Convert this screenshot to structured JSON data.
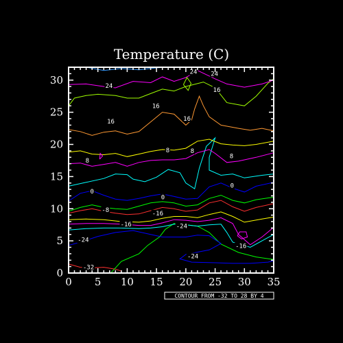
{
  "chart_data": {
    "type": "contour",
    "title": "Temperature (C)",
    "x_ticks": [
      "0",
      "5",
      "10",
      "15",
      "20",
      "25",
      "30",
      "35"
    ],
    "y_ticks": [
      "0",
      "5",
      "10",
      "15",
      "20",
      "25",
      "30"
    ],
    "xlim": [
      0,
      35
    ],
    "ylim": [
      0,
      32
    ],
    "contour_info": "CONTOUR FROM -32 TO 28 BY 4",
    "contour_levels": [
      -32,
      -28,
      -24,
      -20,
      -16,
      -12,
      -8,
      -4,
      0,
      4,
      8,
      12,
      16,
      20,
      24,
      28
    ],
    "level_colors": {
      "-32": "#ff3030",
      "-28": "#00ff00",
      "-24": "#0000ff",
      "-20": "#00ffff",
      "-16": "#ff00ff",
      "-12": "#ffff00",
      "-8": "#ff3030",
      "-4": "#00ff00",
      "0": "#0000ff",
      "4": "#00ffff",
      "8": "#ff00ff",
      "12": "#ffff00",
      "16": "#ff9933",
      "20": "#a0ff00",
      "24": "#ff00ff",
      "28": "#3399ff"
    },
    "contours": [
      {
        "level": -32,
        "points": [
          [
            0,
            1.4
          ],
          [
            2,
            0.9
          ],
          [
            4,
            0.8
          ],
          [
            6,
            0.9
          ],
          [
            8,
            0.6
          ],
          [
            9,
            0.3
          ]
        ]
      },
      {
        "level": -28,
        "points": [
          [
            7.2,
            0
          ],
          [
            9,
            1.8
          ],
          [
            12,
            3.0
          ],
          [
            13.5,
            4.3
          ],
          [
            15.5,
            5.6
          ],
          [
            16.5,
            6.8
          ],
          [
            18,
            7.7
          ],
          [
            20,
            7.5
          ],
          [
            22,
            7.3
          ],
          [
            24,
            6.3
          ],
          [
            26,
            4.5
          ],
          [
            29,
            3.2
          ],
          [
            32,
            2.5
          ],
          [
            35,
            2.1
          ]
        ]
      },
      {
        "level": -24,
        "points": [
          [
            0,
            4.3
          ],
          [
            2,
            4.8
          ],
          [
            5,
            5.7
          ],
          [
            8,
            6.3
          ],
          [
            11,
            6.6
          ],
          [
            14,
            6.0
          ],
          [
            16,
            5.6
          ],
          [
            18,
            5.6
          ],
          [
            20,
            5.6
          ],
          [
            22,
            5.9
          ],
          [
            24,
            5.8
          ],
          [
            26,
            4.6
          ],
          [
            24,
            3.6
          ],
          [
            20,
            2.9
          ],
          [
            19,
            2.2
          ],
          [
            21,
            1.7
          ],
          [
            25,
            1.6
          ],
          [
            28,
            1.5
          ],
          [
            31,
            1.5
          ],
          [
            34,
            1.7
          ],
          [
            35,
            1.9
          ]
        ]
      },
      {
        "level": -20,
        "points": [
          [
            0,
            6.7
          ],
          [
            3,
            6.9
          ],
          [
            6,
            7.0
          ],
          [
            9,
            7.0
          ],
          [
            12,
            6.9
          ],
          [
            14,
            7.0
          ],
          [
            16,
            7.2
          ],
          [
            18,
            7.6
          ],
          [
            20,
            7.5
          ],
          [
            22,
            7.3
          ],
          [
            24,
            7.5
          ],
          [
            26,
            7.6
          ],
          [
            27,
            6.3
          ],
          [
            28,
            4.8
          ],
          [
            31,
            4.0
          ],
          [
            33,
            5.0
          ],
          [
            35,
            6.0
          ]
        ]
      },
      {
        "level": -16,
        "points": [
          [
            0,
            7.6
          ],
          [
            3,
            7.7
          ],
          [
            6,
            7.7
          ],
          [
            9,
            7.6
          ],
          [
            12,
            7.4
          ],
          [
            14,
            7.4
          ],
          [
            16,
            7.8
          ],
          [
            18,
            8.3
          ],
          [
            20,
            8.2
          ],
          [
            22,
            8.0
          ],
          [
            24,
            8.2
          ],
          [
            26,
            8.6
          ],
          [
            28,
            7.7
          ],
          [
            29,
            6.0
          ],
          [
            31,
            4.4
          ],
          [
            33,
            5.6
          ],
          [
            35,
            7.1
          ]
        ]
      },
      {
        "level": -12,
        "points": [
          [
            0,
            8.3
          ],
          [
            3,
            8.4
          ],
          [
            6,
            8.3
          ],
          [
            9,
            8.0
          ],
          [
            12,
            7.9
          ],
          [
            14,
            8.1
          ],
          [
            16,
            8.5
          ],
          [
            18,
            8.8
          ],
          [
            20,
            8.8
          ],
          [
            22,
            8.6
          ],
          [
            24,
            9.1
          ],
          [
            26,
            9.5
          ],
          [
            28,
            8.8
          ],
          [
            30,
            7.9
          ],
          [
            33,
            8.4
          ],
          [
            35,
            8.7
          ]
        ]
      },
      {
        "level": -8,
        "points": [
          [
            0,
            9.3
          ],
          [
            2,
            9.7
          ],
          [
            4,
            10.0
          ],
          [
            6,
            9.6
          ],
          [
            8,
            9.3
          ],
          [
            10,
            9.1
          ],
          [
            12,
            9.2
          ],
          [
            14,
            9.7
          ],
          [
            16,
            10.2
          ],
          [
            18,
            10.0
          ],
          [
            20,
            9.6
          ],
          [
            22,
            9.8
          ],
          [
            24,
            10.9
          ],
          [
            26,
            11.3
          ],
          [
            28,
            10.3
          ],
          [
            30,
            9.6
          ],
          [
            32,
            10.2
          ],
          [
            35,
            10.8
          ]
        ]
      },
      {
        "level": -4,
        "points": [
          [
            0,
            9.6
          ],
          [
            2,
            10.2
          ],
          [
            4,
            10.6
          ],
          [
            6,
            10.2
          ],
          [
            8,
            10.0
          ],
          [
            10,
            9.9
          ],
          [
            12,
            10.4
          ],
          [
            14,
            10.9
          ],
          [
            16,
            11.1
          ],
          [
            18,
            10.9
          ],
          [
            20,
            10.4
          ],
          [
            22,
            10.6
          ],
          [
            24,
            11.6
          ],
          [
            26,
            12.1
          ],
          [
            28,
            11.3
          ],
          [
            30,
            10.9
          ],
          [
            32,
            11.4
          ],
          [
            35,
            11.8
          ]
        ]
      },
      {
        "level": 0,
        "points": [
          [
            0,
            11.2
          ],
          [
            2,
            12.4
          ],
          [
            4,
            12.8
          ],
          [
            6,
            12.1
          ],
          [
            8,
            11.5
          ],
          [
            10,
            11.3
          ],
          [
            12,
            11.6
          ],
          [
            14,
            12.0
          ],
          [
            16,
            12.3
          ],
          [
            18,
            11.9
          ],
          [
            20,
            11.5
          ],
          [
            22,
            11.6
          ],
          [
            24,
            13.4
          ],
          [
            26,
            14.0
          ],
          [
            28,
            13.2
          ],
          [
            30,
            12.6
          ],
          [
            32,
            13.5
          ],
          [
            35,
            14.1
          ]
        ]
      },
      {
        "level": 4,
        "points": [
          [
            0,
            13.5
          ],
          [
            3,
            14.1
          ],
          [
            6,
            14.7
          ],
          [
            8,
            15.4
          ],
          [
            10,
            15.3
          ],
          [
            11,
            14.6
          ],
          [
            13,
            14.2
          ],
          [
            15,
            14.9
          ],
          [
            17,
            16.1
          ],
          [
            19,
            15.6
          ],
          [
            20,
            14.0
          ],
          [
            21.5,
            13.1
          ],
          [
            22.3,
            16.3
          ],
          [
            23.5,
            19.7
          ],
          [
            25,
            21.0
          ],
          [
            24,
            18.0
          ],
          [
            24,
            16.0
          ],
          [
            26,
            15.2
          ],
          [
            28,
            15.4
          ],
          [
            30,
            14.8
          ],
          [
            33,
            15.2
          ],
          [
            35,
            15.4
          ]
        ]
      },
      {
        "level": 8,
        "points": [
          [
            0,
            17.0
          ],
          [
            2,
            17.1
          ],
          [
            4,
            16.6
          ],
          [
            6,
            16.9
          ],
          [
            8,
            17.2
          ],
          [
            10,
            16.6
          ],
          [
            12,
            17.2
          ],
          [
            14,
            17.5
          ],
          [
            16,
            17.6
          ],
          [
            18,
            17.6
          ],
          [
            20,
            17.8
          ],
          [
            22,
            18.7
          ],
          [
            24,
            19.2
          ],
          [
            25,
            18.6
          ],
          [
            27,
            17.2
          ],
          [
            29,
            17.4
          ],
          [
            32,
            18.0
          ],
          [
            35,
            18.7
          ]
        ]
      },
      {
        "level": 12,
        "points": [
          [
            0,
            18.8
          ],
          [
            2,
            19.0
          ],
          [
            4,
            18.5
          ],
          [
            6,
            18.4
          ],
          [
            8,
            18.6
          ],
          [
            10,
            18.1
          ],
          [
            12,
            18.5
          ],
          [
            14,
            18.9
          ],
          [
            16,
            19.2
          ],
          [
            18,
            19.1
          ],
          [
            20,
            19.4
          ],
          [
            22,
            20.5
          ],
          [
            24,
            20.8
          ],
          [
            26,
            20.1
          ],
          [
            28,
            19.9
          ],
          [
            30,
            19.8
          ],
          [
            32,
            20.0
          ],
          [
            35,
            20.5
          ]
        ]
      },
      {
        "level": 16,
        "points": [
          [
            0,
            22.3
          ],
          [
            2,
            22.0
          ],
          [
            4,
            21.4
          ],
          [
            6,
            21.9
          ],
          [
            8,
            22.1
          ],
          [
            10,
            21.6
          ],
          [
            12,
            22.0
          ],
          [
            14,
            23.5
          ],
          [
            16,
            25.0
          ],
          [
            18,
            24.7
          ],
          [
            20,
            23.0
          ],
          [
            21,
            23.8
          ],
          [
            21.5,
            25.5
          ],
          [
            22.3,
            27.5
          ],
          [
            23,
            26.0
          ],
          [
            24,
            24.3
          ],
          [
            26,
            23.0
          ],
          [
            29,
            22.5
          ],
          [
            31,
            22.2
          ],
          [
            33,
            22.5
          ],
          [
            35,
            22.1
          ]
        ]
      },
      {
        "level": 20,
        "points": [
          [
            0,
            26.0
          ],
          [
            1,
            27.2
          ],
          [
            3,
            27.6
          ],
          [
            5,
            27.8
          ],
          [
            8,
            27.6
          ],
          [
            10,
            27.2
          ],
          [
            12,
            27.2
          ],
          [
            14,
            27.9
          ],
          [
            16,
            28.6
          ],
          [
            18,
            28.3
          ],
          [
            20,
            29.0
          ],
          [
            23,
            29.7
          ],
          [
            25,
            28.8
          ],
          [
            27,
            26.5
          ],
          [
            30,
            26.0
          ],
          [
            32,
            27.5
          ],
          [
            34,
            29.5
          ],
          [
            35,
            30.2
          ]
        ]
      },
      {
        "level": 24,
        "points": [
          [
            0,
            29.3
          ],
          [
            3,
            29.4
          ],
          [
            6,
            29.0
          ],
          [
            8,
            28.8
          ],
          [
            11,
            29.8
          ],
          [
            14,
            29.6
          ],
          [
            16,
            30.5
          ],
          [
            18,
            29.8
          ],
          [
            20,
            30.4
          ],
          [
            22,
            31.5
          ],
          [
            25,
            30.2
          ],
          [
            27,
            29.4
          ],
          [
            30,
            28.9
          ],
          [
            33,
            29.4
          ],
          [
            35,
            30.0
          ]
        ]
      },
      {
        "level": 28,
        "points": [
          [
            3,
            32
          ],
          [
            6,
            31.5
          ],
          [
            9,
            31.8
          ],
          [
            12,
            31.6
          ],
          [
            15,
            31.9
          ],
          [
            17,
            32
          ]
        ]
      },
      {
        "level": -16,
        "points": [
          [
            28.8,
            5.8
          ],
          [
            29.5,
            5.3
          ],
          [
            30.5,
            5.6
          ],
          [
            30.3,
            6.4
          ],
          [
            29.2,
            6.4
          ],
          [
            28.8,
            5.8
          ]
        ]
      },
      {
        "level": 20,
        "points": [
          [
            19.6,
            29.3
          ],
          [
            20.2,
            30.4
          ],
          [
            20.9,
            29.5
          ],
          [
            20.4,
            28.4
          ],
          [
            19.6,
            29.3
          ]
        ]
      },
      {
        "level": 8,
        "points": [
          [
            5.3,
            17.7
          ],
          [
            5.8,
            18.2
          ],
          [
            5.4,
            18.6
          ],
          [
            5.3,
            17.7
          ]
        ]
      }
    ],
    "labels": [
      {
        "text": "-32",
        "x": 3.4,
        "y": 0.9
      },
      {
        "text": "-24",
        "x": 2.5,
        "y": 5.2
      },
      {
        "text": "-16",
        "x": 9.8,
        "y": 7.6
      },
      {
        "text": "-8",
        "x": 6.3,
        "y": 9.8
      },
      {
        "text": "0",
        "x": 4.0,
        "y": 12.7
      },
      {
        "text": "-16",
        "x": 15.2,
        "y": 9.3
      },
      {
        "text": "0",
        "x": 16.1,
        "y": 11.8
      },
      {
        "text": "-24",
        "x": 19.3,
        "y": 7.3
      },
      {
        "text": "-24",
        "x": 21.2,
        "y": 2.6
      },
      {
        "text": "-16",
        "x": 29.4,
        "y": 4.2
      },
      {
        "text": "0",
        "x": 27.9,
        "y": 13.6
      },
      {
        "text": "8",
        "x": 3.2,
        "y": 17.5
      },
      {
        "text": "8",
        "x": 16.9,
        "y": 19.1
      },
      {
        "text": "8",
        "x": 21.1,
        "y": 19.0
      },
      {
        "text": "8",
        "x": 27.8,
        "y": 18.2
      },
      {
        "text": "16",
        "x": 7.2,
        "y": 23.6
      },
      {
        "text": "16",
        "x": 14.9,
        "y": 26.0
      },
      {
        "text": "16",
        "x": 20.2,
        "y": 24.0
      },
      {
        "text": "16",
        "x": 25.3,
        "y": 28.5
      },
      {
        "text": "24",
        "x": 6.9,
        "y": 29.1
      },
      {
        "text": "24",
        "x": 21.3,
        "y": 31.3
      },
      {
        "text": "24",
        "x": 24.9,
        "y": 31.0
      }
    ]
  }
}
